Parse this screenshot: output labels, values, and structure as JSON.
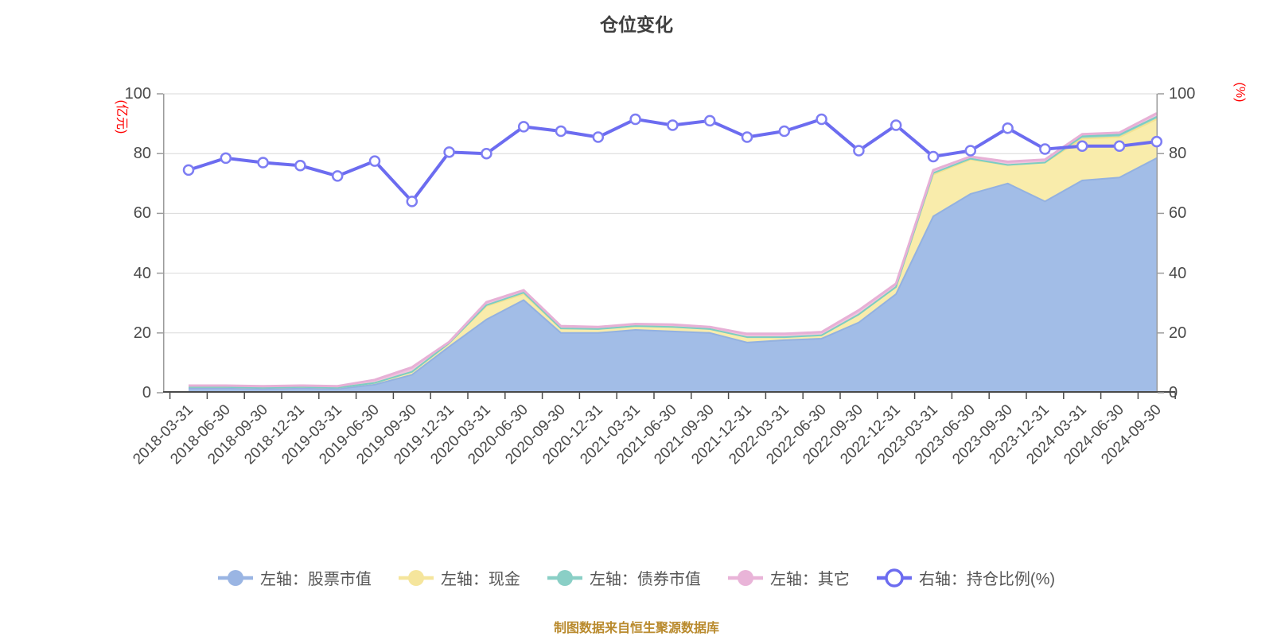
{
  "title": "仓位变化",
  "footer": "制图数据来自恒生聚源数据库",
  "left_axis": {
    "unit": "(亿元)",
    "ticks": [
      0,
      20,
      40,
      60,
      80,
      100
    ],
    "color": "#FF0000"
  },
  "right_axis": {
    "unit": "(%)",
    "ticks": [
      0,
      20,
      40,
      60,
      80,
      100
    ],
    "color": "#FF0000"
  },
  "legend": [
    {
      "key": "stock",
      "label": "左轴：股票市值",
      "color": "#9AB5E3",
      "type": "area"
    },
    {
      "key": "cash",
      "label": "左轴：现金",
      "color": "#F5E59C",
      "type": "area"
    },
    {
      "key": "bond",
      "label": "左轴：债券市值",
      "color": "#8ACFC6",
      "type": "area"
    },
    {
      "key": "other",
      "label": "左轴：其它",
      "color": "#E9B4D8",
      "type": "area"
    },
    {
      "key": "ratio",
      "label": "右轴：持仓比例(%)",
      "color": "#6C6CF0",
      "type": "line"
    }
  ],
  "chart_data": {
    "type": "combo-stacked-area-line",
    "grid": "horizontal",
    "ylim_left": [
      0,
      100
    ],
    "ylim_right": [
      0,
      100
    ],
    "categories": [
      "2018-03-31",
      "2018-06-30",
      "2018-09-30",
      "2018-12-31",
      "2019-03-31",
      "2019-06-30",
      "2019-09-30",
      "2019-12-31",
      "2020-03-31",
      "2020-06-30",
      "2020-09-30",
      "2020-12-31",
      "2021-03-31",
      "2021-06-30",
      "2021-09-30",
      "2021-12-31",
      "2022-03-31",
      "2022-06-30",
      "2022-09-30",
      "2022-12-31",
      "2023-03-31",
      "2023-06-30",
      "2023-09-30",
      "2023-12-31",
      "2024-03-31",
      "2024-06-30",
      "2024-09-30"
    ],
    "area_series": [
      {
        "key": "stock",
        "name": "左轴：股票市值",
        "axis": "left",
        "unit": "亿元",
        "fill": "#A2BDE7",
        "line_color": "#93B1E0",
        "line_width": 2,
        "values": [
          1.5,
          1.5,
          1.3,
          1.5,
          1.3,
          2.7,
          6,
          15.4,
          24.5,
          31,
          20,
          20,
          21,
          20.5,
          20,
          16.8,
          17.6,
          18.1,
          23.5,
          33,
          59,
          66.5,
          70,
          64,
          71,
          72,
          78.5
        ]
      },
      {
        "key": "cash",
        "name": "左轴：现金",
        "axis": "left",
        "unit": "亿元",
        "fill": "#F9ECAB",
        "line_color": "#F3E291",
        "line_width": 2,
        "values": [
          0.4,
          0.4,
          0.4,
          0.4,
          0.4,
          0.6,
          1,
          1.2,
          4.5,
          2,
          1.5,
          1.3,
          1.3,
          1.5,
          1.3,
          1.8,
          1,
          1.1,
          2.7,
          2.4,
          14,
          11.5,
          6.2,
          13,
          14,
          13.5,
          13
        ]
      },
      {
        "key": "bond",
        "name": "左轴：债券市值",
        "axis": "left",
        "unit": "亿元",
        "fill": "#8ED3CA",
        "line_color": "#7CCDC3",
        "line_width": 2,
        "values": [
          0,
          0,
          0,
          0,
          0,
          0,
          0,
          0,
          0.3,
          0.5,
          0,
          0,
          0,
          0,
          0,
          0,
          0,
          0,
          0,
          0,
          0.5,
          0.3,
          0,
          0,
          0.8,
          0.8,
          0.8
        ]
      },
      {
        "key": "other",
        "name": "左轴：其它",
        "axis": "left",
        "unit": "亿元",
        "fill": "#EFC4DF",
        "line_color": "#E7B0D6",
        "line_width": 3,
        "values": [
          0.5,
          0.5,
          0.5,
          0.5,
          0.5,
          1,
          1.5,
          0.4,
          1,
          0.8,
          0.8,
          0.7,
          0.7,
          0.8,
          0.7,
          1.1,
          1.1,
          1.1,
          1.4,
          1.1,
          1,
          0.7,
          1.1,
          1,
          0.7,
          0.7,
          1.2
        ]
      }
    ],
    "line_series": {
      "key": "ratio",
      "name": "右轴：持仓比例(%)",
      "axis": "right",
      "unit": "%",
      "color": "#6C6CF0",
      "marker_fill": "#FFFFFF",
      "marker_border": "#7D7DF3",
      "values": [
        74.5,
        78.5,
        77,
        76,
        72.5,
        77.5,
        64,
        80.5,
        80,
        89,
        87.5,
        85.5,
        91.5,
        89.5,
        91,
        85.5,
        87.5,
        91.5,
        81,
        89.5,
        79,
        81,
        88.5,
        81.5,
        82.5,
        82.5,
        84
      ]
    }
  }
}
